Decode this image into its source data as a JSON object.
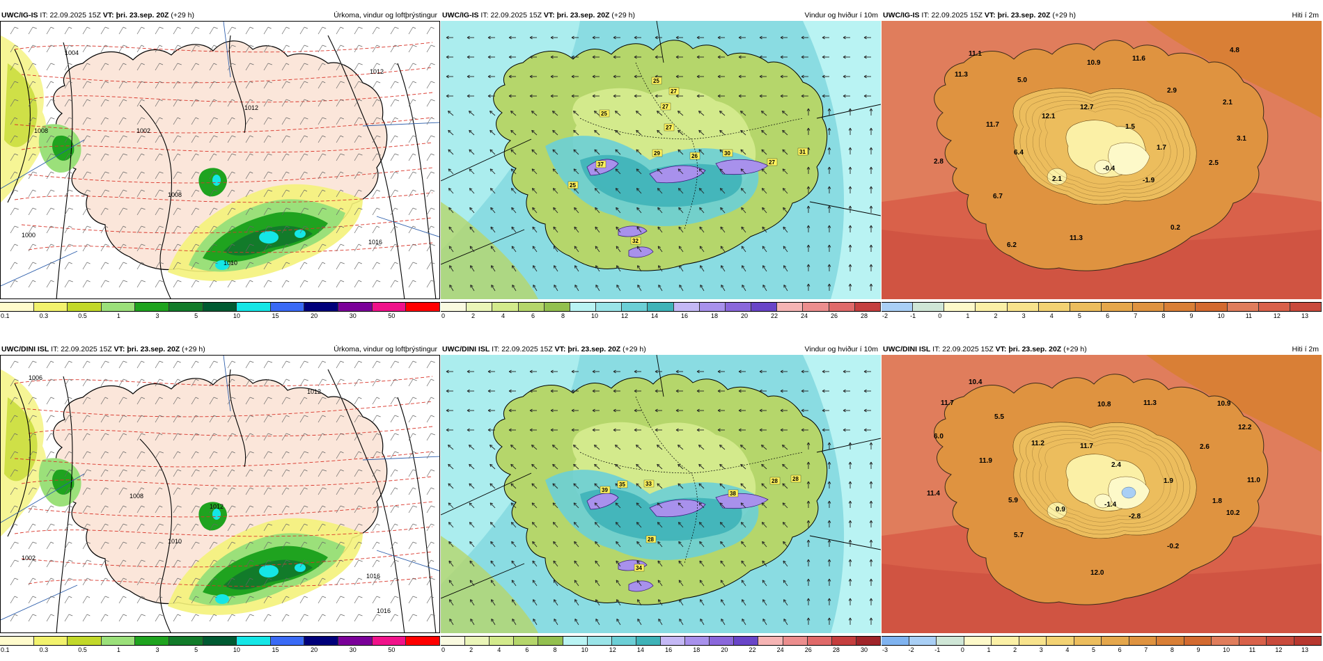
{
  "rows": [
    {
      "model": "UWC/IG-IS",
      "panels": [
        {
          "type": "precip",
          "model": "UWC/IG-IS",
          "it_label": "IT:",
          "it_value": "22.09.2025 15Z",
          "vt_label": "VT:",
          "vt_value": "þri. 23.sep. 20Z",
          "lead": "(+29 h)",
          "title": "Úrkoma, vindur og loftþrýstingur",
          "scale_colors": [
            "#fffbcc",
            "#f2f26d",
            "#c2d82a",
            "#9be07a",
            "#1fa31f",
            "#127b2a",
            "#005a32",
            "#15e6e6",
            "#3a6af5",
            "#00007a",
            "#7a0099",
            "#f0128a",
            "#ff0000"
          ],
          "scale_ticks": [
            "0.1",
            "0.3",
            "0.5",
            "1",
            "3",
            "5",
            "10",
            "15",
            "20",
            "30",
            "50"
          ],
          "pressure_labels": [
            "1004",
            "1008",
            "1008",
            "1012",
            "1012",
            "1016",
            "1010",
            "1000",
            "1002"
          ]
        },
        {
          "type": "wind",
          "model": "UWC/IG-IS",
          "it_label": "IT:",
          "it_value": "22.09.2025 15Z",
          "vt_label": "VT:",
          "vt_value": "þri. 23.sep. 20Z",
          "lead": "(+29 h)",
          "title": "Vindur og hviður í 10m",
          "scale_colors": [
            "#fafae0",
            "#eaf5b8",
            "#d3ea8c",
            "#b5d66b",
            "#93c04f",
            "#b9f3f3",
            "#9ae4e8",
            "#6ccfd6",
            "#3fb3b8",
            "#c4b8f5",
            "#a891ec",
            "#8a67db",
            "#6945c8",
            "#f5b4b4",
            "#ec8e8e",
            "#e06a6a",
            "#c53f3f"
          ],
          "scale_ticks": [
            "0",
            "2",
            "4",
            "6",
            "8",
            "10",
            "12",
            "14",
            "16",
            "18",
            "20",
            "22",
            "24",
            "26",
            "28"
          ],
          "gusts": [
            "25",
            "27",
            "27",
            "25",
            "27",
            "29",
            "37",
            "26",
            "30",
            "27",
            "31",
            "25",
            "32"
          ]
        },
        {
          "type": "temp",
          "model": "UWC/IG-IS",
          "it_label": "IT:",
          "it_value": "22.09.2025 15Z",
          "vt_label": "VT:",
          "vt_value": "þri. 23.sep. 20Z",
          "lead": "(+29 h)",
          "title": "Hiti í 2m",
          "scale_colors": [
            "#a9cff5",
            "#cfe6d6",
            "#fdf9c9",
            "#fbf0a6",
            "#f8e38c",
            "#f3d273",
            "#ecbd5d",
            "#e5a74c",
            "#df9340",
            "#d97f36",
            "#d36a30",
            "#e07d5c",
            "#d9614a",
            "#c94a3c"
          ],
          "scale_ticks": [
            "-2",
            "-1",
            "0",
            "1",
            "2",
            "3",
            "4",
            "5",
            "6",
            "7",
            "8",
            "9",
            "10",
            "11",
            "12",
            "13"
          ],
          "temps": [
            "11.1",
            "11.3",
            "5.0",
            "10.9",
            "11.6",
            "4.8",
            "2.9",
            "2.1",
            "12.7",
            "12.1",
            "1.5",
            "11.7",
            "1.7",
            "3.1",
            "6.4",
            "2.8",
            "2.1",
            "-0.4",
            "-1.9",
            "2.5",
            "6.7",
            "0.2",
            "11.3",
            "6.2"
          ]
        }
      ]
    },
    {
      "model": "UWC/DINI ISL",
      "panels": [
        {
          "type": "precip",
          "model": "UWC/DINI ISL",
          "it_label": "IT:",
          "it_value": "22.09.2025 15Z",
          "vt_label": "VT:",
          "vt_value": "þri. 23.sep. 20Z",
          "lead": "(+29 h)",
          "title": "Úrkoma, vindur og loftþrýstingur",
          "scale_colors": [
            "#fffbcc",
            "#f2f26d",
            "#c2d82a",
            "#9be07a",
            "#1fa31f",
            "#127b2a",
            "#005a32",
            "#15e6e6",
            "#3a6af5",
            "#00007a",
            "#7a0099",
            "#f0128a",
            "#ff0000"
          ],
          "scale_ticks": [
            "0.1",
            "0.3",
            "0.5",
            "1",
            "3",
            "5",
            "10",
            "15",
            "20",
            "30",
            "50"
          ],
          "pressure_labels": [
            "1006",
            "1002",
            "1012",
            "1008",
            "1012",
            "1016",
            "1010",
            "1016"
          ]
        },
        {
          "type": "wind",
          "model": "UWC/DINI ISL",
          "it_label": "IT:",
          "it_value": "22.09.2025 15Z",
          "vt_label": "VT:",
          "vt_value": "þri. 23.sep. 20Z",
          "lead": "(+29 h)",
          "title": "Vindur og hviður í 10m",
          "scale_colors": [
            "#fafae0",
            "#eaf5b8",
            "#d3ea8c",
            "#b5d66b",
            "#93c04f",
            "#b9f3f3",
            "#9ae4e8",
            "#6ccfd6",
            "#3fb3b8",
            "#c4b8f5",
            "#a891ec",
            "#8a67db",
            "#6945c8",
            "#f5b4b4",
            "#ec8e8e",
            "#e06a6a",
            "#c53f3f",
            "#a0252a"
          ],
          "scale_ticks": [
            "0",
            "2",
            "4",
            "6",
            "8",
            "10",
            "12",
            "14",
            "16",
            "18",
            "20",
            "22",
            "24",
            "26",
            "28",
            "30"
          ],
          "gusts": [
            "35",
            "33",
            "39",
            "28",
            "28",
            "38",
            "28",
            "34"
          ]
        },
        {
          "type": "temp",
          "model": "UWC/DINI ISL",
          "it_label": "IT:",
          "it_value": "22.09.2025 15Z",
          "vt_label": "VT:",
          "vt_value": "þri. 23.sep. 20Z",
          "lead": "(+29 h)",
          "title": "Hiti í 2m",
          "scale_colors": [
            "#7fb3f0",
            "#a9cff5",
            "#cfe6d6",
            "#fdf9c9",
            "#fbf0a6",
            "#f8e38c",
            "#f3d273",
            "#ecbd5d",
            "#e5a74c",
            "#df9340",
            "#d97f36",
            "#d36a30",
            "#e07d5c",
            "#d9614a",
            "#c94a3c",
            "#b8382f"
          ],
          "scale_ticks": [
            "-3",
            "-2",
            "-1",
            "0",
            "1",
            "2",
            "3",
            "4",
            "5",
            "6",
            "7",
            "8",
            "9",
            "10",
            "11",
            "12",
            "13"
          ],
          "temps": [
            "10.4",
            "11.7",
            "5.5",
            "10.8",
            "11.3",
            "10.9",
            "6.0",
            "12.2",
            "11.2",
            "11.7",
            "2.6",
            "11.9",
            "2.4",
            "1.9",
            "11.0",
            "11.4",
            "5.9",
            "0.9",
            "-1.4",
            "1.8",
            "-2.8",
            "10.2",
            "5.7",
            "-0.2",
            "12.0"
          ]
        }
      ]
    }
  ]
}
